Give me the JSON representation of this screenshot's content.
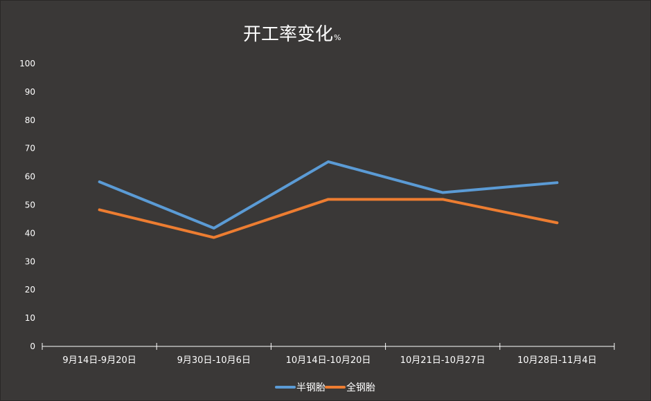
{
  "chart_data": {
    "type": "line",
    "title": "开工率变化",
    "title_unit": "%",
    "categories": [
      "9月14日-9月20日",
      "9月30日-10月6日",
      "10月14日-10月20日",
      "10月21日-10月27日",
      "10月28日-11月4日"
    ],
    "series": [
      {
        "name": "半钢胎",
        "values": [
          58.2,
          41.8,
          65.3,
          54.4,
          57.9
        ],
        "color": "#5b9bd5"
      },
      {
        "name": "全钢胎",
        "values": [
          48.3,
          38.5,
          52.0,
          52.0,
          43.7
        ],
        "color": "#ed7d31"
      }
    ],
    "ylim": [
      0,
      100
    ],
    "yticks": [
      "0",
      "10",
      "20",
      "30",
      "40",
      "50",
      "60",
      "70",
      "80",
      "90",
      "100"
    ],
    "grid": false,
    "legend_position": "bottom"
  },
  "colors": {
    "background": "#3a3837",
    "axis": "#ffffff"
  }
}
